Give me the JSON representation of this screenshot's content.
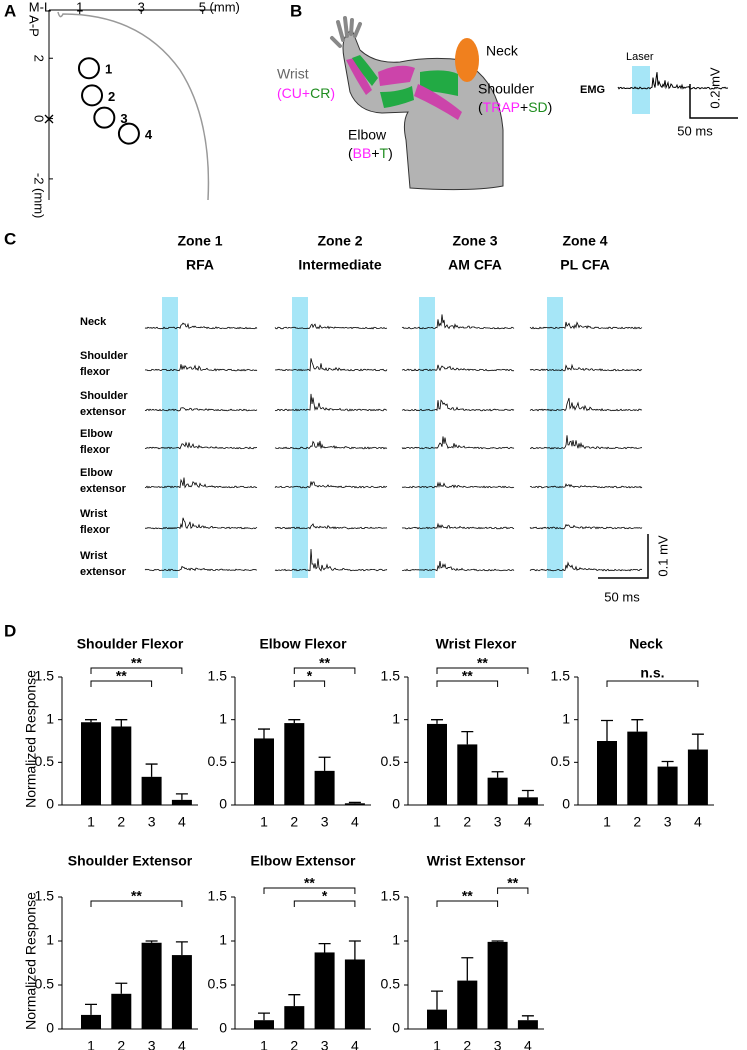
{
  "panel_labels": [
    "A",
    "B",
    "C",
    "D"
  ],
  "panel_b": {
    "neck": "Neck",
    "shoulder": "Shoulder",
    "shoulder_muscles": [
      "(",
      "TRAP",
      "+",
      "SD",
      ")"
    ],
    "wrist": "Wrist",
    "wrist_muscles": [
      "(",
      "CU",
      "+",
      "CR",
      ")"
    ],
    "elbow": "Elbow",
    "elbow_muscles": [
      "(",
      "BB",
      "+",
      "T",
      ")"
    ],
    "laser": "Laser",
    "emg": "EMG",
    "scale_y": "0.2 mV",
    "scale_x": "50 ms"
  },
  "panel_c": {
    "zones": [
      {
        "name": "Zone 1",
        "area": "RFA"
      },
      {
        "name": "Zone 2",
        "area": "Intermediate"
      },
      {
        "name": "Zone 3",
        "area": "AM CFA"
      },
      {
        "name": "Zone 4",
        "area": "PL CFA"
      }
    ],
    "rows": [
      {
        "lines": [
          "Neck"
        ],
        "color": "#000000"
      },
      {
        "lines": [
          "Shoulder",
          "flexor"
        ],
        "color": "#ff22ff"
      },
      {
        "lines": [
          "Shoulder",
          "extensor"
        ],
        "color": "#1e8c1e"
      },
      {
        "lines": [
          "Elbow",
          "flexor"
        ],
        "color": "#ff22ff"
      },
      {
        "lines": [
          "Elbow",
          "extensor"
        ],
        "color": "#1e8c1e"
      },
      {
        "lines": [
          "Wrist",
          "flexor"
        ],
        "color": "#ff22ff"
      },
      {
        "lines": [
          "Wrist",
          "extensor"
        ],
        "color": "#1e8c1e"
      }
    ],
    "scale_y": "0.1 mV",
    "scale_x": "50 ms"
  },
  "chart_data": [
    {
      "type": "scatter",
      "xlabel": "M-L",
      "ylabel": "A-P",
      "x": [
        1.3,
        1.4,
        1.8,
        2.6
      ],
      "y": [
        1.67,
        0.77,
        0.03,
        -0.5
      ],
      "point_labels": [
        "1",
        "2",
        "3",
        "4"
      ],
      "xlim": [
        0,
        5.4
      ],
      "ylim": [
        -2.7,
        3.6
      ],
      "xticks": [
        1,
        3,
        {
          "value": 5,
          "label": "5 (mm)"
        }
      ],
      "yticks": [
        2,
        0,
        {
          "value": -2,
          "label": "-2 (mm)"
        }
      ]
    },
    {
      "type": "bar",
      "title": "Shoulder Flexor",
      "title_color": "#ff22ff",
      "ylabel": "Normalized Response",
      "categories": [
        "1",
        "2",
        "3",
        "4"
      ],
      "values": [
        0.97,
        0.92,
        0.33,
        0.06
      ],
      "errors": [
        0.03,
        0.08,
        0.15,
        0.07
      ],
      "color": "#000000",
      "ylim": [
        0,
        1.5
      ],
      "yticks": [
        0,
        0.5,
        1,
        1.5
      ],
      "comparisons": [
        {
          "pair": [
            "1",
            "3"
          ],
          "label": "**"
        },
        {
          "pair": [
            "1",
            "4"
          ],
          "label": "**"
        }
      ]
    },
    {
      "type": "bar",
      "title": "Elbow Flexor",
      "title_color": "#ff22ff",
      "categories": [
        "1",
        "2",
        "3",
        "4"
      ],
      "values": [
        0.78,
        0.96,
        0.4,
        0.02
      ],
      "errors": [
        0.11,
        0.04,
        0.16,
        0.01
      ],
      "color": "#000000",
      "ylim": [
        0,
        1.5
      ],
      "yticks": [
        0,
        0.5,
        1,
        1.5
      ],
      "comparisons": [
        {
          "pair": [
            "2",
            "3"
          ],
          "label": "*"
        },
        {
          "pair": [
            "2",
            "4"
          ],
          "label": "**"
        }
      ]
    },
    {
      "type": "bar",
      "title": "Wrist Flexor",
      "title_color": "#ff22ff",
      "categories": [
        "1",
        "2",
        "3",
        "4"
      ],
      "values": [
        0.95,
        0.71,
        0.32,
        0.09
      ],
      "errors": [
        0.05,
        0.15,
        0.07,
        0.08
      ],
      "color": "#000000",
      "ylim": [
        0,
        1.5
      ],
      "yticks": [
        0,
        0.5,
        1,
        1.5
      ],
      "comparisons": [
        {
          "pair": [
            "1",
            "3"
          ],
          "label": "**"
        },
        {
          "pair": [
            "1",
            "4"
          ],
          "label": "**"
        }
      ]
    },
    {
      "type": "bar",
      "title": "Neck",
      "title_color": "#000000",
      "categories": [
        "1",
        "2",
        "3",
        "4"
      ],
      "values": [
        0.75,
        0.86,
        0.45,
        0.65
      ],
      "errors": [
        0.24,
        0.14,
        0.06,
        0.18
      ],
      "color": "#000000",
      "ylim": [
        0,
        1.5
      ],
      "yticks": [
        0,
        0.5,
        1,
        1.5
      ],
      "comparisons": [
        {
          "pair": [
            "1",
            "4"
          ],
          "label": "n.s."
        }
      ]
    },
    {
      "type": "bar",
      "title": "Shoulder Extensor",
      "title_color": "#1e8c1e",
      "ylabel": "Normalized Response",
      "categories": [
        "1",
        "2",
        "3",
        "4"
      ],
      "values": [
        0.16,
        0.4,
        0.98,
        0.84
      ],
      "errors": [
        0.12,
        0.12,
        0.02,
        0.15
      ],
      "color": "#000000",
      "ylim": [
        0,
        1.5
      ],
      "yticks": [
        0,
        0.5,
        1,
        1.5
      ],
      "comparisons": [
        {
          "pair": [
            "1",
            "4"
          ],
          "label": "**"
        }
      ]
    },
    {
      "type": "bar",
      "title": "Elbow Extensor",
      "title_color": "#1e8c1e",
      "categories": [
        "1",
        "2",
        "3",
        "4"
      ],
      "values": [
        0.1,
        0.26,
        0.87,
        0.79
      ],
      "errors": [
        0.08,
        0.13,
        0.1,
        0.21
      ],
      "color": "#000000",
      "ylim": [
        0,
        1.5
      ],
      "yticks": [
        0,
        0.5,
        1,
        1.5
      ],
      "comparisons": [
        {
          "pair": [
            "2",
            "4"
          ],
          "label": "*"
        },
        {
          "pair": [
            "1",
            "4"
          ],
          "label": "**"
        }
      ]
    },
    {
      "type": "bar",
      "title": "Wrist Extensor",
      "title_color": "#1e8c1e",
      "categories": [
        "1",
        "2",
        "3",
        "4"
      ],
      "values": [
        0.22,
        0.55,
        0.99,
        0.1
      ],
      "errors": [
        0.21,
        0.26,
        0.01,
        0.05
      ],
      "color": "#000000",
      "ylim": [
        0,
        1.5
      ],
      "yticks": [
        0,
        0.5,
        1,
        1.5
      ],
      "comparisons": [
        {
          "pair": [
            "1",
            "3"
          ],
          "label": "**"
        },
        {
          "pair": [
            "3",
            "4"
          ],
          "label": "**"
        }
      ]
    }
  ]
}
